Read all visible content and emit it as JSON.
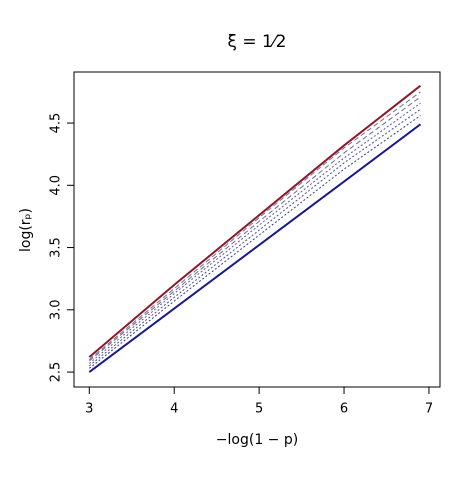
{
  "chart_data": {
    "type": "line",
    "title": "ξ = 1⁄2",
    "xlabel": "−log(1 − p)",
    "ylabel": "log(rₚ)",
    "x": [
      3,
      4,
      5,
      6,
      6.9
    ],
    "series": [
      {
        "color": "#8b1a2a",
        "linestyle": "solid",
        "values": [
          2.62,
          3.2,
          3.76,
          4.32,
          4.8
        ]
      },
      {
        "color": "#7a6a8a",
        "linestyle": "dashed",
        "values": [
          2.6,
          3.17,
          3.74,
          4.3,
          4.75
        ]
      },
      {
        "color": "#6a6a9a",
        "linestyle": "dashed",
        "values": [
          2.59,
          3.15,
          3.71,
          4.26,
          4.71
        ]
      },
      {
        "color": "#5a5a9a",
        "linestyle": "dotted",
        "values": [
          2.57,
          3.13,
          3.68,
          4.22,
          4.66
        ]
      },
      {
        "color": "#4a4a9a",
        "linestyle": "dotted",
        "values": [
          2.55,
          3.1,
          3.64,
          4.18,
          4.61
        ]
      },
      {
        "color": "#3a3a9a",
        "linestyle": "dotted",
        "values": [
          2.53,
          3.07,
          3.6,
          4.13,
          4.56
        ]
      },
      {
        "color": "#1a1a8b",
        "linestyle": "solid",
        "values": [
          2.5,
          3.01,
          3.52,
          4.03,
          4.49
        ]
      }
    ],
    "xlim": [
      2.82,
      7.13
    ],
    "ylim": [
      2.38,
      4.91
    ],
    "xticks": [
      3,
      4,
      5,
      6,
      7
    ],
    "yticks": [
      2.5,
      {
        "value": 3,
        "label": "3.0"
      },
      3.5,
      {
        "value": 4,
        "label": "4.0"
      },
      4.5
    ],
    "grid": false
  }
}
